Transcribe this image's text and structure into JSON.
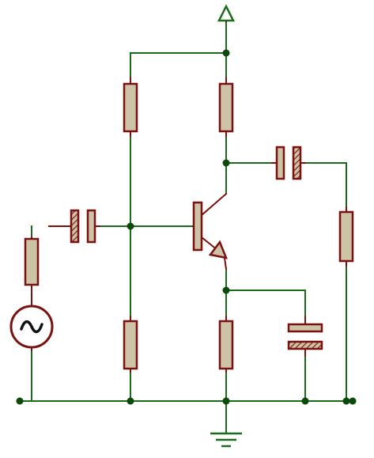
{
  "colors": {
    "wire": "#1a6b1a",
    "component_outline": "#7a1010",
    "component_fill": "#cdc3a6",
    "node": "#0c4a0c",
    "background": "#ffffff"
  },
  "circuit": {
    "type": "common-emitter-amplifier",
    "components": [
      {
        "id": "source",
        "kind": "ac-voltage-source",
        "symbol": "~"
      },
      {
        "id": "r-source",
        "kind": "resistor"
      },
      {
        "id": "c-input",
        "kind": "polarized-capacitor"
      },
      {
        "id": "r-bias-top",
        "kind": "resistor"
      },
      {
        "id": "r-bias-bottom",
        "kind": "resistor"
      },
      {
        "id": "r-collector",
        "kind": "resistor"
      },
      {
        "id": "q1",
        "kind": "npn-transistor"
      },
      {
        "id": "r-emitter",
        "kind": "resistor"
      },
      {
        "id": "c-emitter-bypass",
        "kind": "polarized-capacitor"
      },
      {
        "id": "c-output",
        "kind": "polarized-capacitor"
      },
      {
        "id": "r-load",
        "kind": "resistor"
      },
      {
        "id": "supply",
        "kind": "power-terminal"
      },
      {
        "id": "ground",
        "kind": "ground"
      }
    ]
  }
}
